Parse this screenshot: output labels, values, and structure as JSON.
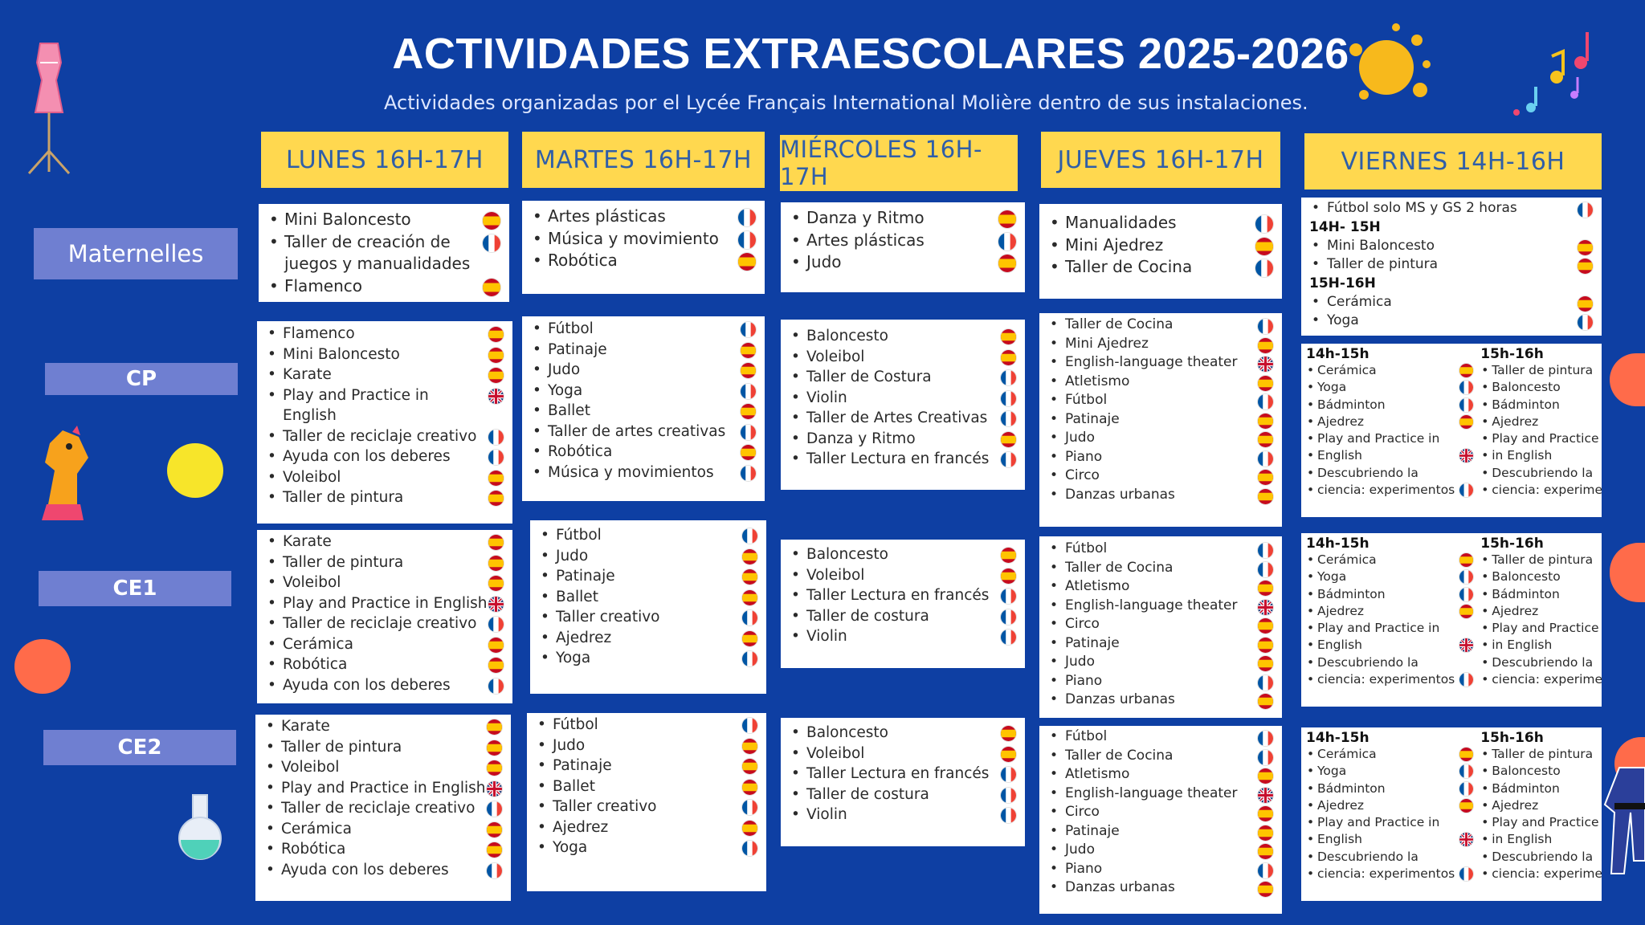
{
  "header": {
    "title": "ACTIVIDADES EXTRAESCOLARES  2025-2026",
    "subtitle": "Actividades organizadas por el Lycée Français International Molière dentro de sus instalaciones."
  },
  "days": {
    "monday": "LUNES 16H-17H",
    "tuesday": "MARTES 16H-17H",
    "wednesday": "MIÉRCOLES 16H-17H",
    "thursday": "JUEVES 16H-17H",
    "friday": "VIERNES 14H-16H"
  },
  "levels": {
    "mat": "Maternelles",
    "cp": "CP",
    "ce1": "CE1",
    "ce2": "CE2"
  },
  "colors": {
    "background": "#0e3fa3",
    "day_header": "#ffd84f",
    "day_text": "#2f5ea8",
    "level": "#6f7fd1"
  },
  "flags": {
    "es": "spain-flag-icon",
    "fr": "france-flag-icon",
    "gb": "uk-flag-icon"
  },
  "mat": {
    "mon": [
      {
        "label": "Mini Baloncesto",
        "flag": "es"
      },
      {
        "label": "Taller de creación de",
        "flag": "fr"
      },
      {
        "label": "juegos y manualidades",
        "flag": ""
      },
      {
        "label": "Flamenco",
        "flag": "es"
      }
    ],
    "tue": [
      {
        "label": "Artes plásticas",
        "flag": "fr"
      },
      {
        "label": "Música y movimiento",
        "flag": "fr"
      },
      {
        "label": "Robótica",
        "flag": "es"
      }
    ],
    "wed": [
      {
        "label": "Danza y Ritmo",
        "flag": "es"
      },
      {
        "label": "Artes plásticas",
        "flag": "fr"
      },
      {
        "label": "Judo",
        "flag": "es"
      }
    ],
    "thu": [
      {
        "label": "Manualidades",
        "flag": "fr"
      },
      {
        "label": "Mini Ajedrez",
        "flag": "es"
      },
      {
        "label": "Taller de Cocina",
        "flag": "fr"
      }
    ],
    "fri": {
      "first": {
        "label": "Fútbol solo MS y GS 2 horas",
        "flag": "fr"
      },
      "slot1": "14H- 15H",
      "slot1_items": [
        {
          "label": "Mini Baloncesto",
          "flag": "es"
        },
        {
          "label": "Taller de pintura",
          "flag": "es"
        }
      ],
      "slot2": "15H-16H",
      "slot2_items": [
        {
          "label": "Cerámica",
          "flag": "es"
        },
        {
          "label": "Yoga",
          "flag": "fr"
        }
      ]
    }
  },
  "cp": {
    "mon": [
      {
        "label": "Flamenco",
        "flag": "es"
      },
      {
        "label": "Mini Baloncesto",
        "flag": "es"
      },
      {
        "label": "Karate",
        "flag": "es"
      },
      {
        "label": "Play and Practice in",
        "flag": "gb"
      },
      {
        "label": "English",
        "flag": ""
      },
      {
        "label": "Taller de reciclaje creativo",
        "flag": "fr"
      },
      {
        "label": "Ayuda con los deberes",
        "flag": "fr"
      },
      {
        "label": "Voleibol",
        "flag": "es"
      },
      {
        "label": "Taller de pintura",
        "flag": "es"
      }
    ],
    "tue": [
      {
        "label": "Fútbol",
        "flag": "fr"
      },
      {
        "label": "Patinaje",
        "flag": "es"
      },
      {
        "label": "Judo",
        "flag": "es"
      },
      {
        "label": "Yoga",
        "flag": "fr"
      },
      {
        "label": "Ballet",
        "flag": "es"
      },
      {
        "label": "Taller de artes creativas",
        "flag": "fr"
      },
      {
        "label": "Robótica",
        "flag": "es"
      },
      {
        "label": "Música y movimientos",
        "flag": "fr"
      }
    ],
    "wed": [
      {
        "label": "Baloncesto",
        "flag": "es"
      },
      {
        "label": "Voleibol",
        "flag": "es"
      },
      {
        "label": "Taller de Costura",
        "flag": "fr"
      },
      {
        "label": "Violin",
        "flag": "fr"
      },
      {
        "label": "Taller de Artes Creativas",
        "flag": "fr"
      },
      {
        "label": "Danza y Ritmo",
        "flag": "es"
      },
      {
        "label": "Taller Lectura en francés",
        "flag": "fr"
      }
    ],
    "thu": [
      {
        "label": "Taller de Cocina",
        "flag": "fr"
      },
      {
        "label": "Mini Ajedrez",
        "flag": "es"
      },
      {
        "label": "English-language theater",
        "flag": "gb"
      },
      {
        "label": "Atletismo",
        "flag": "es"
      },
      {
        "label": "Fútbol",
        "flag": "fr"
      },
      {
        "label": "Patinaje",
        "flag": "es"
      },
      {
        "label": "Judo",
        "flag": "es"
      },
      {
        "label": "Piano",
        "flag": "fr"
      },
      {
        "label": "Circo",
        "flag": "es"
      },
      {
        "label": "Danzas urbanas",
        "flag": "es"
      }
    ],
    "fri": {
      "left_slot": "14h-15h",
      "left": [
        {
          "label": "Cerámica",
          "flag": "es"
        },
        {
          "label": "Yoga",
          "flag": "fr"
        },
        {
          "label": "Bádminton",
          "flag": "fr"
        },
        {
          "label": "Ajedrez",
          "flag": "es"
        },
        {
          "label": "Play and Practice in",
          "flag": ""
        },
        {
          "label": "English",
          "flag": "gb"
        },
        {
          "label": "Descubriendo la",
          "flag": ""
        },
        {
          "label": "ciencia: experimentos",
          "flag": "fr"
        }
      ],
      "right_slot": "15h-16h",
      "right": [
        {
          "label": "Taller de pintura",
          "flag": "es"
        },
        {
          "label": "Baloncesto",
          "flag": "es"
        },
        {
          "label": "Bádminton",
          "flag": "fr"
        },
        {
          "label": "Ajedrez",
          "flag": "es"
        },
        {
          "label": "Play and Practice",
          "flag": ""
        },
        {
          "label": "in English",
          "flag": "gb"
        },
        {
          "label": "Descubriendo la",
          "flag": ""
        },
        {
          "label": "ciencia: experimentos",
          "flag": "fr"
        }
      ]
    }
  },
  "ce1": {
    "mon": [
      {
        "label": "Karate",
        "flag": "es"
      },
      {
        "label": "Taller de pintura",
        "flag": "es"
      },
      {
        "label": "Voleibol",
        "flag": "es"
      },
      {
        "label": "Play and Practice in English",
        "flag": "gb"
      },
      {
        "label": "Taller de reciclaje creativo",
        "flag": "fr"
      },
      {
        "label": "Cerámica",
        "flag": "es"
      },
      {
        "label": "Robótica",
        "flag": "es"
      },
      {
        "label": "Ayuda con los deberes",
        "flag": "fr"
      }
    ],
    "tue": [
      {
        "label": "Fútbol",
        "flag": "fr"
      },
      {
        "label": "Judo",
        "flag": "es"
      },
      {
        "label": "Patinaje",
        "flag": "es"
      },
      {
        "label": "Ballet",
        "flag": "es"
      },
      {
        "label": "Taller creativo",
        "flag": "fr"
      },
      {
        "label": "Ajedrez",
        "flag": "es"
      },
      {
        "label": "Yoga",
        "flag": "fr"
      }
    ],
    "wed": [
      {
        "label": "Baloncesto",
        "flag": "es"
      },
      {
        "label": "Voleibol",
        "flag": "es"
      },
      {
        "label": "Taller Lectura en francés",
        "flag": "fr"
      },
      {
        "label": "Taller de costura",
        "flag": "fr"
      },
      {
        "label": "Violin",
        "flag": "fr"
      }
    ],
    "thu": [
      {
        "label": "Fútbol",
        "flag": "fr"
      },
      {
        "label": "Taller de Cocina",
        "flag": "fr"
      },
      {
        "label": "Atletismo",
        "flag": "es"
      },
      {
        "label": "English-language theater",
        "flag": "gb"
      },
      {
        "label": "Circo",
        "flag": "es"
      },
      {
        "label": "Patinaje",
        "flag": "es"
      },
      {
        "label": "Judo",
        "flag": "es"
      },
      {
        "label": "Piano",
        "flag": "fr"
      },
      {
        "label": "Danzas urbanas",
        "flag": "es"
      }
    ],
    "fri": {
      "left_slot": "14h-15h",
      "left": [
        {
          "label": "Cerámica",
          "flag": "es"
        },
        {
          "label": "Yoga",
          "flag": "fr"
        },
        {
          "label": "Bádminton",
          "flag": "fr"
        },
        {
          "label": "Ajedrez",
          "flag": "es"
        },
        {
          "label": "Play and Practice in",
          "flag": ""
        },
        {
          "label": "English",
          "flag": "gb"
        },
        {
          "label": "Descubriendo la",
          "flag": ""
        },
        {
          "label": "ciencia: experimentos",
          "flag": "fr"
        }
      ],
      "right_slot": "15h-16h",
      "right": [
        {
          "label": "Taller de pintura",
          "flag": "es"
        },
        {
          "label": "Baloncesto",
          "flag": "es"
        },
        {
          "label": "Bádminton",
          "flag": "fr"
        },
        {
          "label": "Ajedrez",
          "flag": "es"
        },
        {
          "label": "Play and Practice",
          "flag": ""
        },
        {
          "label": "in English",
          "flag": "gb"
        },
        {
          "label": "Descubriendo la",
          "flag": ""
        },
        {
          "label": "ciencia: experimentos",
          "flag": "fr"
        }
      ]
    }
  },
  "ce2": {
    "mon": [
      {
        "label": "Karate",
        "flag": "es"
      },
      {
        "label": "Taller de pintura",
        "flag": "es"
      },
      {
        "label": "Voleibol",
        "flag": "es"
      },
      {
        "label": "Play and Practice in English",
        "flag": "gb"
      },
      {
        "label": "Taller de reciclaje creativo",
        "flag": "fr"
      },
      {
        "label": "Cerámica",
        "flag": "es"
      },
      {
        "label": "Robótica",
        "flag": "es"
      },
      {
        "label": "Ayuda con los deberes",
        "flag": "fr"
      }
    ],
    "tue": [
      {
        "label": "Fútbol",
        "flag": "fr"
      },
      {
        "label": "Judo",
        "flag": "es"
      },
      {
        "label": "Patinaje",
        "flag": "es"
      },
      {
        "label": "Ballet",
        "flag": "es"
      },
      {
        "label": "Taller creativo",
        "flag": "fr"
      },
      {
        "label": "Ajedrez",
        "flag": "es"
      },
      {
        "label": "Yoga",
        "flag": "fr"
      }
    ],
    "wed": [
      {
        "label": "Baloncesto",
        "flag": "es"
      },
      {
        "label": "Voleibol",
        "flag": "es"
      },
      {
        "label": "Taller Lectura en francés",
        "flag": "fr"
      },
      {
        "label": "Taller de costura",
        "flag": "fr"
      },
      {
        "label": "Violin",
        "flag": "fr"
      }
    ],
    "thu": [
      {
        "label": "Fútbol",
        "flag": "fr"
      },
      {
        "label": "Taller de Cocina",
        "flag": "fr"
      },
      {
        "label": "Atletismo",
        "flag": "es"
      },
      {
        "label": "English-language theater",
        "flag": "gb"
      },
      {
        "label": "Circo",
        "flag": "es"
      },
      {
        "label": "Patinaje",
        "flag": "es"
      },
      {
        "label": "Judo",
        "flag": "es"
      },
      {
        "label": "Piano",
        "flag": "fr"
      },
      {
        "label": "Danzas urbanas",
        "flag": "es"
      }
    ],
    "fri": {
      "left_slot": "14h-15h",
      "left": [
        {
          "label": "Cerámica",
          "flag": "es"
        },
        {
          "label": "Yoga",
          "flag": "fr"
        },
        {
          "label": "Bádminton",
          "flag": "fr"
        },
        {
          "label": "Ajedrez",
          "flag": "es"
        },
        {
          "label": "Play and Practice in",
          "flag": ""
        },
        {
          "label": "English",
          "flag": "gb"
        },
        {
          "label": "Descubriendo la",
          "flag": ""
        },
        {
          "label": "ciencia: experimentos",
          "flag": "fr"
        }
      ],
      "right_slot": "15h-16h",
      "right": [
        {
          "label": "Taller de pintura",
          "flag": "es"
        },
        {
          "label": "Baloncesto",
          "flag": "es"
        },
        {
          "label": "Bádminton",
          "flag": "fr"
        },
        {
          "label": "Ajedrez",
          "flag": "es"
        },
        {
          "label": "Play and Practice",
          "flag": ""
        },
        {
          "label": "in English",
          "flag": "gb"
        },
        {
          "label": "Descubriendo la",
          "flag": ""
        },
        {
          "label": "ciencia: experimentos",
          "flag": "fr"
        }
      ]
    }
  }
}
